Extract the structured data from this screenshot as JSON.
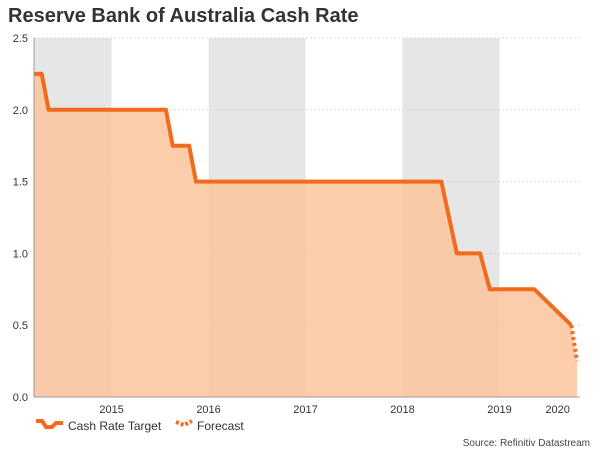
{
  "title": "Reserve Bank of Australia Cash Rate",
  "source": "Source: Refinitiv Datastream",
  "colors": {
    "line": "#f26b1d",
    "area": "#fcc49b",
    "band_shade": "#e6e6e6",
    "grid": "#d9d9d9"
  },
  "chart_data": {
    "type": "area",
    "title": "Reserve Bank of Australia Cash Rate",
    "xlabel": "",
    "ylabel": "",
    "x_axis": {
      "start": 2014.7,
      "end": 2020.33,
      "tick_labels": [
        "2015",
        "2016",
        "2017",
        "2018",
        "2019",
        "2020"
      ],
      "tick_label_positions": [
        2015.5,
        2016.5,
        2017.5,
        2018.5,
        2019.5,
        2020.1
      ]
    },
    "ylim": [
      0,
      2.5
    ],
    "yticks": [
      0.0,
      0.5,
      1.0,
      1.5,
      2.0,
      2.5
    ],
    "grid": "horizontal-dashed",
    "shaded_year_bands": [
      [
        2014.7,
        2015.5
      ],
      [
        2016.5,
        2017.5
      ],
      [
        2018.5,
        2019.5
      ]
    ],
    "series": [
      {
        "name": "Cash Rate Target",
        "style": "solid",
        "x": [
          2014.7,
          2014.78,
          2014.85,
          2016.06,
          2016.13,
          2016.3,
          2016.37,
          2018.9,
          2019.06,
          2019.3,
          2019.4,
          2019.8,
          2019.86,
          2020.24
        ],
        "y": [
          2.25,
          2.25,
          2.0,
          2.0,
          1.75,
          1.75,
          1.5,
          1.5,
          1.0,
          1.0,
          0.75,
          0.75,
          0.75,
          0.5
        ]
      },
      {
        "name": "Forecast",
        "style": "dotted",
        "x": [
          2020.24,
          2020.3
        ],
        "y": [
          0.5,
          0.25
        ]
      }
    ],
    "legend": {
      "placement": "bottom-left",
      "entries": [
        "Cash Rate Target",
        "Forecast"
      ]
    }
  }
}
